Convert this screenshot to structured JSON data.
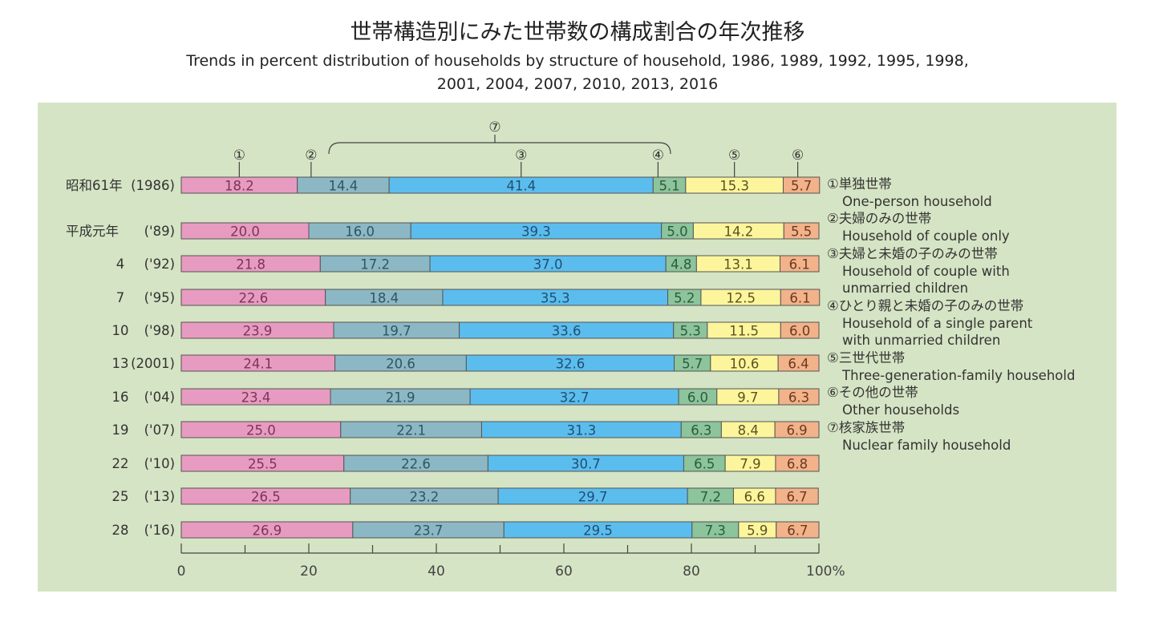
{
  "title": "世帯構造別にみた世帯数の構成割合の年次推移",
  "subtitle": "Trends in percent distribution of households by structure of household, 1986, 1989, 1992, 1995, 1998, 2001, 2004, 2007, 2010, 2013, 2016",
  "chart_data": {
    "type": "bar",
    "orientation": "horizontal-stacked-100",
    "categories": [
      {
        "era": "昭和61年",
        "year": "(1986)"
      },
      {
        "era": "平成元年",
        "year": "('89)"
      },
      {
        "era": "4",
        "year": "('92)"
      },
      {
        "era": "7",
        "year": "('95)"
      },
      {
        "era": "10",
        "year": "('98)"
      },
      {
        "era": "13",
        "year": "(2001)"
      },
      {
        "era": "16",
        "year": "('04)"
      },
      {
        "era": "19",
        "year": "('07)"
      },
      {
        "era": "22",
        "year": "('10)"
      },
      {
        "era": "25",
        "year": "('13)"
      },
      {
        "era": "28",
        "year": "('16)"
      }
    ],
    "series": [
      {
        "marker": "①",
        "name": "単独世帯",
        "name_en": "One-person household",
        "color": "#e89bc0",
        "text_color": "#7a3558",
        "values": [
          18.2,
          20.0,
          21.8,
          22.6,
          23.9,
          24.1,
          23.4,
          25.0,
          25.5,
          26.5,
          26.9
        ]
      },
      {
        "marker": "②",
        "name": "夫婦のみの世帯",
        "name_en": "Household of couple only",
        "color": "#8bb8c4",
        "text_color": "#2f5560",
        "values": [
          14.4,
          16.0,
          17.2,
          18.4,
          19.7,
          20.6,
          21.9,
          22.1,
          22.6,
          23.2,
          23.7
        ]
      },
      {
        "marker": "③",
        "name": "夫婦と未婚の子のみの世帯",
        "name_en": "Household of couple with unmarried children",
        "color": "#5bbdee",
        "text_color": "#1f4f70",
        "values": [
          41.4,
          39.3,
          37.0,
          35.3,
          33.6,
          32.6,
          32.7,
          31.3,
          30.7,
          29.7,
          29.5
        ]
      },
      {
        "marker": "④",
        "name": "ひとり親と未婚の子のみの世帯",
        "name_en": "Household of a single parent with unmarried children",
        "color": "#8cc49c",
        "text_color": "#2e5a3a",
        "values": [
          5.1,
          5.0,
          4.8,
          5.2,
          5.3,
          5.7,
          6.0,
          6.3,
          6.5,
          7.2,
          7.3
        ]
      },
      {
        "marker": "⑤",
        "name": "三世代世帯",
        "name_en": "Three-generation-family household",
        "color": "#fdf59c",
        "text_color": "#5a5320",
        "values": [
          15.3,
          14.2,
          13.1,
          12.5,
          11.5,
          10.6,
          9.7,
          8.4,
          7.9,
          6.6,
          5.9
        ]
      },
      {
        "marker": "⑥",
        "name": "その他の世帯",
        "name_en": "Other households",
        "color": "#f2b28a",
        "text_color": "#6a3a1f",
        "values": [
          5.7,
          5.5,
          6.1,
          6.1,
          6.0,
          6.4,
          6.3,
          6.9,
          6.8,
          6.7,
          6.7
        ]
      }
    ],
    "group": {
      "marker": "⑦",
      "name": "核家族世帯",
      "name_en": "Nuclear family household",
      "members": [
        "②",
        "③",
        "④"
      ]
    },
    "xlim": [
      0,
      100
    ],
    "xticks": [
      "0",
      "20",
      "40",
      "60",
      "80",
      "100%"
    ],
    "legend_placement": "right"
  },
  "legend": [
    {
      "jp": "①単独世帯",
      "en": [
        "One-person household"
      ]
    },
    {
      "jp": "②夫婦のみの世帯",
      "en": [
        "Household of couple only"
      ]
    },
    {
      "jp": "③夫婦と未婚の子のみの世帯",
      "en": [
        "Household of couple with",
        "unmarried children"
      ]
    },
    {
      "jp": "④ひとり親と未婚の子のみの世帯",
      "en": [
        "Household of a single parent",
        "with unmarried children"
      ]
    },
    {
      "jp": "⑤三世代世帯",
      "en": [
        "Three-generation-family household"
      ]
    },
    {
      "jp": "⑥その他の世帯",
      "en": [
        "Other households"
      ]
    },
    {
      "jp": "⑦核家族世帯",
      "en": [
        "Nuclear family household"
      ]
    }
  ],
  "colors": {
    "panel_background": "#d5e4c4"
  }
}
